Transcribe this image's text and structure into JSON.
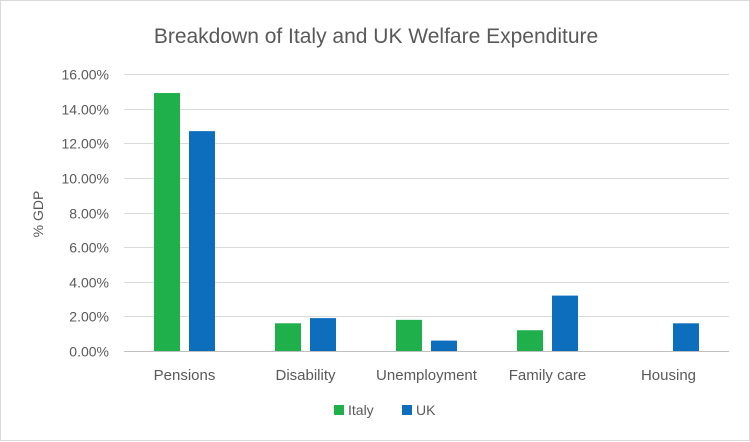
{
  "chart_data": {
    "type": "bar",
    "title": "Breakdown of Italy and UK Welfare Expenditure",
    "xlabel": "",
    "ylabel": "% GDP",
    "categories": [
      "Pensions",
      "Disability",
      "Unemployment",
      "Family care",
      "Housing"
    ],
    "series": [
      {
        "name": "Italy",
        "color": "#1fb04b",
        "values": [
          14.9,
          1.6,
          1.8,
          1.2,
          0
        ]
      },
      {
        "name": "UK",
        "color": "#0d6ebd",
        "values": [
          12.7,
          1.9,
          0.6,
          3.2,
          1.6
        ]
      }
    ],
    "ylim": [
      0,
      16
    ],
    "yticks": [
      0,
      2,
      4,
      6,
      8,
      10,
      12,
      14,
      16
    ],
    "ytick_labels": [
      "0.00%",
      "2.00%",
      "4.00%",
      "6.00%",
      "8.00%",
      "10.00%",
      "12.00%",
      "14.00%",
      "16.00%"
    ],
    "grid": true,
    "legend": "bottom-center"
  }
}
